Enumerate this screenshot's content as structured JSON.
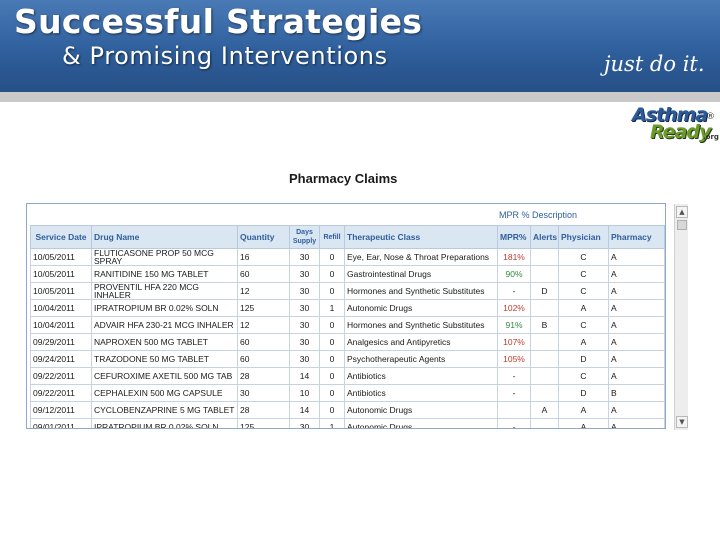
{
  "banner": {
    "title_line1": "Successful Strategies",
    "title_line2": "& Promising Interventions",
    "tagline": "just do it."
  },
  "logo": {
    "line1": "Asthma",
    "line2": "Ready",
    "reg": "®",
    "suffix": ".org"
  },
  "page_title": "Pharmacy Claims",
  "mpr_legend": "MPR % Description",
  "colors": {
    "banner": "#2f5f9c",
    "header_bg": "#dbe6f3",
    "header_text": "#2f5f9c",
    "mpr_high": "#c0392b",
    "mpr_ok": "#2e8b3e"
  },
  "table": {
    "headers": {
      "service_date": "Service Date",
      "drug_name": "Drug Name",
      "quantity": "Quantity",
      "days_supply": "Days Supply",
      "refill": "Refill",
      "therapeutic_class": "Therapeutic Class",
      "mpr": "MPR%",
      "alerts": "Alerts",
      "physician": "Physician",
      "pharmacy": "Pharmacy"
    },
    "rows": [
      {
        "date": "10/05/2011",
        "drug": "FLUTICASONE PROP 50 MCG SPRAY",
        "qty": "16",
        "days": "30",
        "refill": "0",
        "class": "Eye, Ear, Nose & Throat Preparations",
        "mpr": "181%",
        "mpr_status": "high",
        "alerts": "",
        "physician": "C",
        "pharmacy": "A"
      },
      {
        "date": "10/05/2011",
        "drug": "RANITIDINE 150 MG TABLET",
        "qty": "60",
        "days": "30",
        "refill": "0",
        "class": "Gastrointestinal Drugs",
        "mpr": "90%",
        "mpr_status": "ok",
        "alerts": "",
        "physician": "C",
        "pharmacy": "A"
      },
      {
        "date": "10/05/2011",
        "drug": "PROVENTIL HFA 220 MCG INHALER",
        "qty": "12",
        "days": "30",
        "refill": "0",
        "class": "Hormones and Synthetic Substitutes",
        "mpr": "-",
        "mpr_status": "none",
        "alerts": "D",
        "physician": "C",
        "pharmacy": "A"
      },
      {
        "date": "10/04/2011",
        "drug": "IPRATROPIUM BR 0.02% SOLN",
        "qty": "125",
        "days": "30",
        "refill": "1",
        "class": "Autonomic Drugs",
        "mpr": "102%",
        "mpr_status": "high",
        "alerts": "",
        "physician": "A",
        "pharmacy": "A"
      },
      {
        "date": "10/04/2011",
        "drug": "ADVAIR HFA 230-21 MCG INHALER",
        "qty": "12",
        "days": "30",
        "refill": "0",
        "class": "Hormones and Synthetic Substitutes",
        "mpr": "91%",
        "mpr_status": "ok",
        "alerts": "B",
        "physician": "C",
        "pharmacy": "A"
      },
      {
        "date": "09/29/2011",
        "drug": "NAPROXEN 500 MG TABLET",
        "qty": "60",
        "days": "30",
        "refill": "0",
        "class": "Analgesics and Antipyretics",
        "mpr": "107%",
        "mpr_status": "high",
        "alerts": "",
        "physician": "A",
        "pharmacy": "A"
      },
      {
        "date": "09/24/2011",
        "drug": "TRAZODONE 50 MG TABLET",
        "qty": "60",
        "days": "30",
        "refill": "0",
        "class": "Psychotherapeutic Agents",
        "mpr": "105%",
        "mpr_status": "high",
        "alerts": "",
        "physician": "D",
        "pharmacy": "A"
      },
      {
        "date": "09/22/2011",
        "drug": "CEFUROXIME AXETIL 500 MG TAB",
        "qty": "28",
        "days": "14",
        "refill": "0",
        "class": "Antibiotics",
        "mpr": "-",
        "mpr_status": "none",
        "alerts": "",
        "physician": "C",
        "pharmacy": "A"
      },
      {
        "date": "09/22/2011",
        "drug": "CEPHALEXIN 500 MG CAPSULE",
        "qty": "30",
        "days": "10",
        "refill": "0",
        "class": "Antibiotics",
        "mpr": "-",
        "mpr_status": "none",
        "alerts": "",
        "physician": "D",
        "pharmacy": "B"
      },
      {
        "date": "09/12/2011",
        "drug": "CYCLOBENZAPRINE 5 MG TABLET",
        "qty": "28",
        "days": "14",
        "refill": "0",
        "class": "Autonomic Drugs",
        "mpr": "",
        "mpr_status": "none",
        "alerts": "A",
        "physician": "A",
        "pharmacy": "A"
      },
      {
        "date": "09/01/2011",
        "drug": "IPRATROPIUM BR 0.02% SOLN",
        "qty": "125",
        "days": "30",
        "refill": "1",
        "class": "Autonomic Drugs",
        "mpr": "-",
        "mpr_status": "none",
        "alerts": "",
        "physician": "A",
        "pharmacy": "A"
      }
    ]
  },
  "scrollbar": {
    "up_icon": "triangle-up-icon",
    "down_icon": "triangle-down-icon"
  }
}
